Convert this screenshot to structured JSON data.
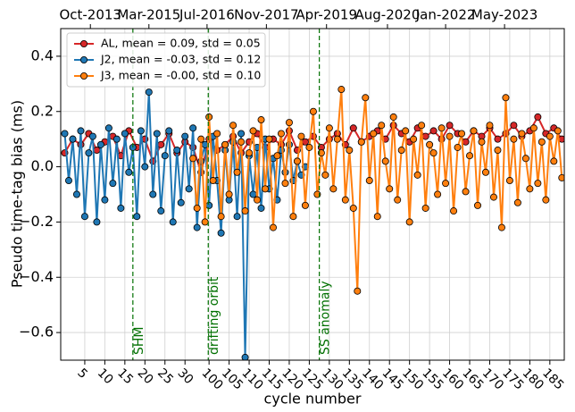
{
  "chart_data": {
    "type": "line",
    "xlabel": "cycle number",
    "ylabel": "Pseudo time-tag bias (ms)",
    "xlim": [
      -1,
      124.6
    ],
    "ylim": [
      -0.7,
      0.5
    ],
    "xticks": [
      5,
      10,
      15,
      20,
      25,
      30,
      {
        "value": 36,
        "label": "100"
      },
      {
        "value": 41,
        "label": "105"
      },
      {
        "value": 46,
        "label": "110"
      },
      {
        "value": 51,
        "label": "115"
      },
      {
        "value": 56,
        "label": "120"
      },
      {
        "value": 61,
        "label": "125"
      },
      {
        "value": 66,
        "label": "130"
      },
      {
        "value": 71,
        "label": "135"
      },
      {
        "value": 76,
        "label": "140"
      },
      {
        "value": 81,
        "label": "145"
      },
      {
        "value": 86,
        "label": "150"
      },
      {
        "value": 91,
        "label": "155"
      },
      {
        "value": 96,
        "label": "160"
      },
      {
        "value": 101,
        "label": "165"
      },
      {
        "value": 106,
        "label": "170"
      },
      {
        "value": 111,
        "label": "175"
      },
      {
        "value": 116,
        "label": "180"
      },
      {
        "value": 121,
        "label": "185"
      }
    ],
    "top_xticks": [
      {
        "value": 6.4,
        "label": "Oct-2013"
      },
      {
        "value": 21,
        "label": "Mar-2015"
      },
      {
        "value": 35.5,
        "label": "Jul-2016"
      },
      {
        "value": 50.3,
        "label": "Nov-2017"
      },
      {
        "value": 65.3,
        "label": "Apr-2019"
      },
      {
        "value": 80.5,
        "label": "Aug-2020"
      },
      {
        "value": 95,
        "label": "Jan-2022"
      },
      {
        "value": 109.7,
        "label": "May-2023"
      }
    ],
    "yticks": [
      {
        "value": -0.6,
        "label": "−0.6"
      },
      {
        "value": -0.4,
        "label": "−0.4"
      },
      {
        "value": -0.2,
        "label": "−0.2"
      },
      {
        "value": 0,
        "label": "0.0"
      },
      0.2,
      0.4
    ],
    "grid": true,
    "legend": "upper left",
    "vlines": [
      {
        "x": 17,
        "label": "SHM",
        "color": "#007000"
      },
      {
        "x": 35.8,
        "label": "drifting orbit",
        "color": "#007000"
      },
      {
        "x": 63.5,
        "label": "SS anomaly",
        "color": "#007000"
      }
    ],
    "series": [
      {
        "name": "AL, mean = 0.09, std = 0.05",
        "color": "#d62728",
        "x": [
          0,
          2,
          4,
          6,
          8,
          10,
          12,
          14,
          16,
          18,
          20,
          22,
          24,
          26,
          28,
          30,
          32,
          34,
          36,
          38,
          40,
          42,
          44,
          46,
          48,
          50,
          52,
          54,
          56,
          58,
          60,
          62,
          64,
          66,
          68,
          70,
          72,
          74,
          76,
          78,
          80,
          82,
          84,
          86,
          88,
          90,
          92,
          94,
          96,
          98,
          100,
          102,
          104,
          106,
          108,
          110,
          112,
          114,
          116,
          118,
          120,
          122,
          124
        ],
        "values": [
          0.05,
          0.1,
          0.08,
          0.12,
          0.06,
          0.09,
          0.11,
          0.04,
          0.13,
          0.07,
          0.1,
          0.02,
          0.08,
          0.12,
          0.05,
          0.09,
          0.07,
          -0.02,
          0.1,
          0.06,
          0.08,
          0.11,
          0.05,
          0.09,
          0.12,
          0.07,
          0.1,
          0.08,
          0.13,
          0.06,
          0.09,
          0.11,
          0.07,
          0.1,
          0.12,
          0.08,
          0.14,
          0.09,
          0.11,
          0.13,
          0.1,
          0.15,
          0.12,
          0.09,
          0.14,
          0.11,
          0.13,
          0.1,
          0.15,
          0.12,
          0.09,
          0.13,
          0.11,
          0.14,
          0.1,
          0.12,
          0.15,
          0.11,
          0.13,
          0.18,
          0.12,
          0.14,
          0.1
        ]
      },
      {
        "name": "J2, mean = -0.03, std = 0.12",
        "color": "#1f77b4",
        "x": [
          0,
          1,
          2,
          3,
          4,
          5,
          6,
          7,
          8,
          9,
          10,
          11,
          12,
          13,
          14,
          15,
          16,
          17,
          18,
          19,
          20,
          21,
          22,
          23,
          24,
          25,
          26,
          27,
          28,
          29,
          30,
          31,
          32,
          33,
          34,
          35,
          36,
          37,
          38,
          39,
          40,
          41,
          42,
          43,
          44,
          45,
          46,
          47,
          48,
          49,
          50,
          51,
          52,
          53,
          54,
          55,
          56,
          57,
          58,
          59,
          60
        ],
        "values": [
          0.12,
          -0.05,
          0.1,
          -0.1,
          0.13,
          -0.18,
          0.05,
          0.11,
          -0.2,
          0.08,
          -0.12,
          0.14,
          -0.06,
          0.1,
          -0.15,
          0.12,
          -0.02,
          0.07,
          -0.18,
          0.13,
          0.0,
          0.27,
          -0.1,
          0.12,
          -0.16,
          0.04,
          0.13,
          -0.2,
          0.06,
          -0.13,
          0.11,
          -0.08,
          0.14,
          -0.22,
          0.02,
          0.08,
          -0.14,
          0.11,
          -0.05,
          -0.24,
          0.06,
          -0.12,
          0.09,
          -0.18,
          0.12,
          -0.69,
          0.04,
          -0.1,
          0.07,
          -0.15,
          0.1,
          -0.08,
          0.03,
          -0.12,
          0.06,
          -0.02,
          0.08,
          -0.05,
          0.02,
          -0.03,
          0.0
        ]
      },
      {
        "name": "J3, mean = -0.00, std = 0.10",
        "color": "#ff7f0e",
        "x": [
          32,
          33,
          34,
          35,
          36,
          37,
          38,
          39,
          40,
          41,
          42,
          43,
          44,
          45,
          46,
          47,
          48,
          49,
          50,
          51,
          52,
          53,
          54,
          55,
          56,
          57,
          58,
          59,
          60,
          61,
          62,
          63,
          64,
          65,
          66,
          67,
          68,
          69,
          70,
          71,
          72,
          73,
          74,
          75,
          76,
          77,
          78,
          79,
          80,
          81,
          82,
          83,
          84,
          85,
          86,
          87,
          88,
          89,
          90,
          91,
          92,
          93,
          94,
          95,
          96,
          97,
          98,
          99,
          100,
          101,
          102,
          103,
          104,
          105,
          106,
          107,
          108,
          109,
          110,
          111,
          112,
          113,
          114,
          115,
          116,
          117,
          118,
          119,
          120,
          121,
          122,
          123,
          124
        ],
        "values": [
          0.03,
          -0.15,
          0.1,
          -0.2,
          0.18,
          -0.05,
          0.12,
          -0.18,
          0.08,
          -0.1,
          0.15,
          -0.02,
          0.09,
          -0.16,
          0.05,
          0.13,
          -0.12,
          0.17,
          -0.08,
          0.1,
          -0.22,
          0.04,
          0.12,
          -0.06,
          0.16,
          -0.18,
          0.02,
          0.11,
          -0.14,
          0.07,
          0.2,
          -0.1,
          0.05,
          -0.03,
          0.14,
          -0.08,
          0.1,
          0.28,
          -0.12,
          0.06,
          -0.15,
          -0.45,
          0.09,
          0.25,
          -0.05,
          0.12,
          -0.18,
          0.15,
          0.02,
          -0.08,
          0.18,
          -0.12,
          0.06,
          0.13,
          -0.2,
          0.1,
          -0.03,
          0.15,
          -0.15,
          0.08,
          0.05,
          -0.1,
          0.14,
          -0.06,
          0.11,
          -0.16,
          0.07,
          0.12,
          -0.09,
          0.04,
          0.13,
          -0.14,
          0.09,
          -0.02,
          0.15,
          -0.11,
          0.06,
          -0.22,
          0.25,
          -0.05,
          0.1,
          -0.13,
          0.12,
          0.03,
          -0.08,
          0.14,
          -0.06,
          0.09,
          -0.12,
          0.11,
          0.02,
          0.13,
          -0.04
        ]
      }
    ]
  }
}
